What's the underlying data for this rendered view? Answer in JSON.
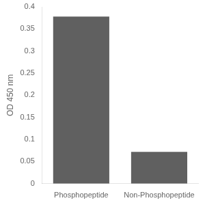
{
  "chart_data": {
    "type": "bar",
    "categories": [
      "Phosphopeptide",
      "Non-Phosphopeptide"
    ],
    "values": [
      0.378,
      0.072
    ],
    "color": "#606060",
    "ylabel": "OD 450 nm",
    "ylim": [
      0,
      0.4
    ],
    "yticks": [
      0,
      0.05,
      0.1,
      0.15,
      0.2,
      0.25,
      0.3,
      0.35,
      0.4
    ],
    "grid": false
  }
}
